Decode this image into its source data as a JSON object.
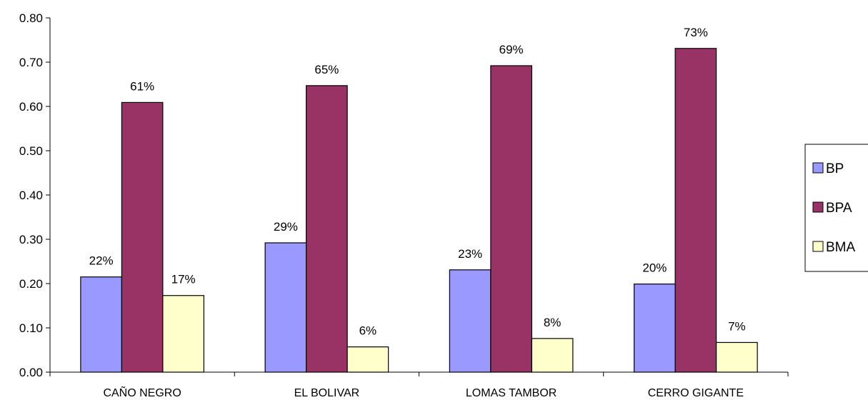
{
  "chart_data": {
    "type": "bar",
    "categories": [
      "CAÑO NEGRO",
      "EL BOLIVAR",
      "LOMAS TAMBOR",
      "CERRO GIGANTE"
    ],
    "series": [
      {
        "name": "BP",
        "color": "#9999ff",
        "values": [
          0.215,
          0.292,
          0.231,
          0.199
        ],
        "labels": [
          "22%",
          "29%",
          "23%",
          "20%"
        ]
      },
      {
        "name": "BPA",
        "color": "#993366",
        "values": [
          0.609,
          0.647,
          0.692,
          0.731
        ],
        "labels": [
          "61%",
          "65%",
          "69%",
          "73%"
        ]
      },
      {
        "name": "BMA",
        "color": "#ffffcc",
        "values": [
          0.173,
          0.057,
          0.076,
          0.067
        ],
        "labels": [
          "17%",
          "6%",
          "8%",
          "7%"
        ]
      }
    ],
    "yticks": [
      "0.00",
      "0.10",
      "0.20",
      "0.30",
      "0.40",
      "0.50",
      "0.60",
      "0.70",
      "0.80"
    ],
    "ylim": [
      0,
      0.8
    ],
    "grid": false,
    "legend_position": "right"
  }
}
